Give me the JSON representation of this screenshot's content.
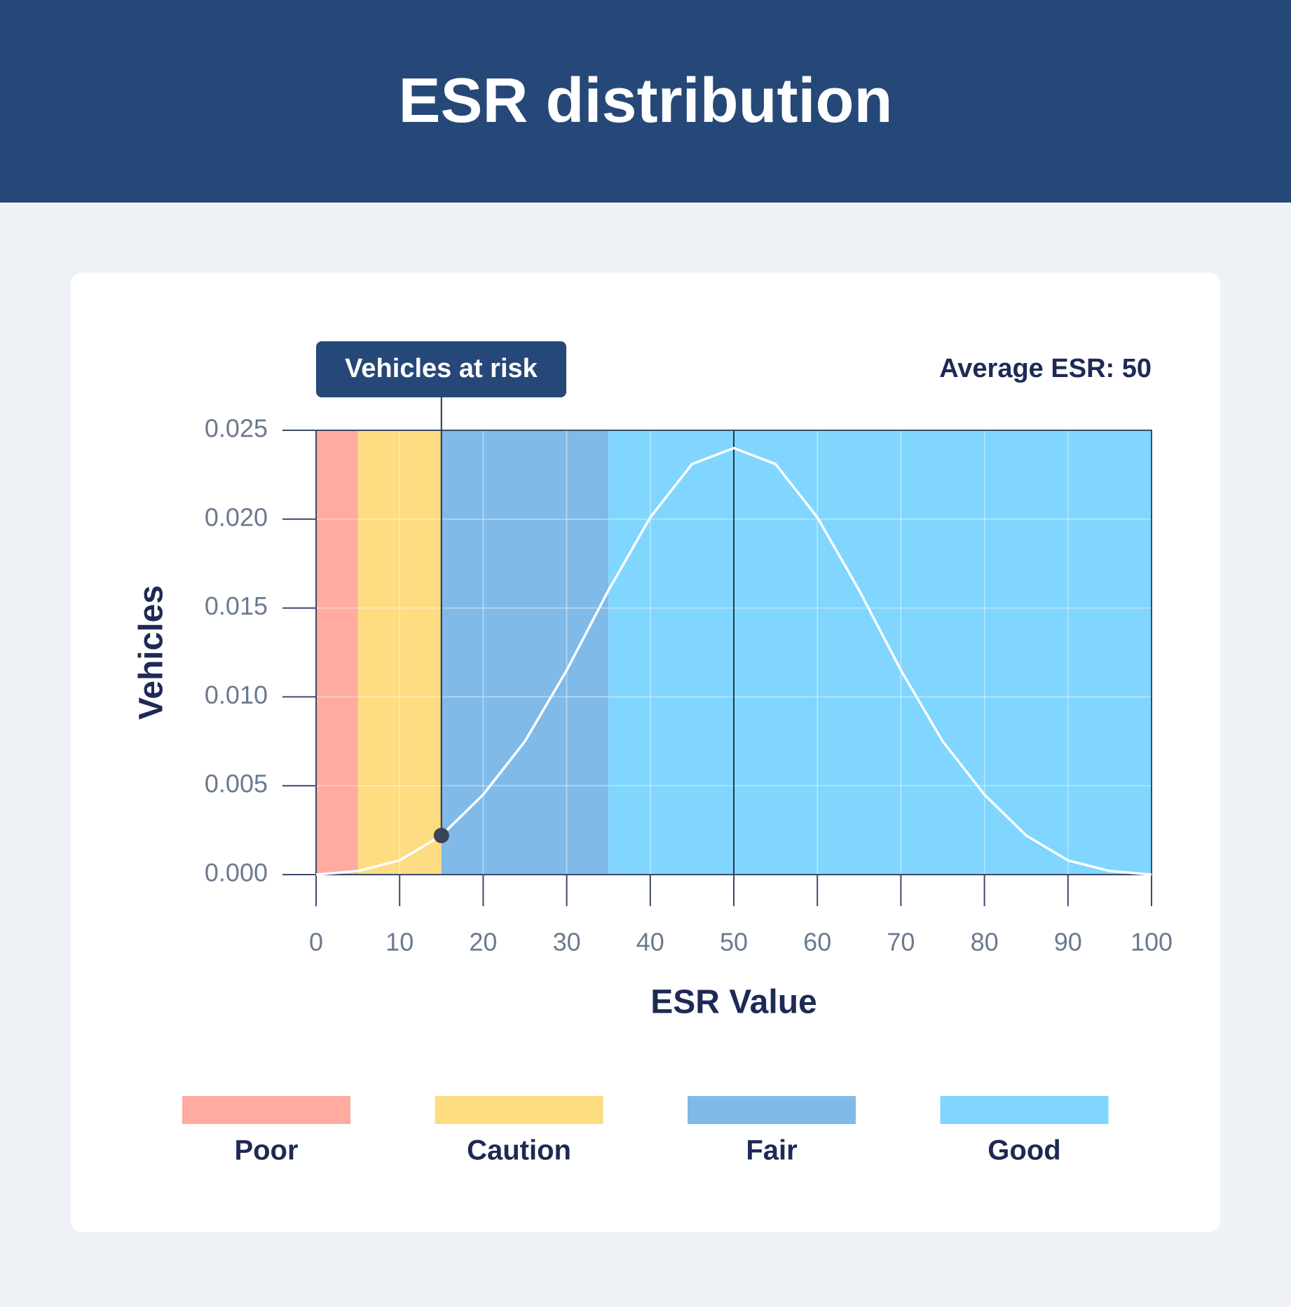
{
  "chart_data": {
    "type": "line",
    "title": "ESR distribution",
    "x_label": "ESR Value",
    "y_label": "Vehicles",
    "x": [
      0,
      5,
      10,
      15,
      20,
      25,
      30,
      35,
      40,
      45,
      50,
      55,
      60,
      65,
      70,
      75,
      80,
      85,
      90,
      95,
      100
    ],
    "series": [
      {
        "name": "ESR distribution",
        "color": "#ffffff",
        "values": [
          0,
          0.0002,
          0.0008,
          0.0022,
          0.0045,
          0.0075,
          0.0115,
          0.016,
          0.0201,
          0.0231,
          0.024,
          0.0231,
          0.0201,
          0.016,
          0.0115,
          0.0075,
          0.0045,
          0.0022,
          0.0008,
          0.0002,
          0
        ]
      }
    ],
    "xlim": [
      0,
      100
    ],
    "xticks": [
      0,
      10,
      20,
      30,
      40,
      50,
      60,
      70,
      80,
      90,
      100
    ],
    "ylim": [
      0,
      0.025
    ],
    "yticks": [
      {
        "value": 0,
        "label": "0.000"
      },
      {
        "value": 0.005,
        "label": "0.005"
      },
      {
        "value": 0.01,
        "label": "0.010"
      },
      {
        "value": 0.015,
        "label": "0.015"
      },
      {
        "value": 0.02,
        "label": "0.020"
      },
      {
        "value": 0.025,
        "label": "0.025"
      }
    ],
    "grid": true,
    "bands": [
      {
        "name": "Poor",
        "color": "#ffaba0",
        "from": 0,
        "to": 5
      },
      {
        "name": "Caution",
        "color": "#fddc82",
        "from": 5,
        "to": 15
      },
      {
        "name": "Fair",
        "color": "#80bae8",
        "from": 15,
        "to": 35
      },
      {
        "name": "Good",
        "color": "#80d6fe",
        "from": 35,
        "to": 100
      }
    ],
    "highlight_index": 3,
    "highlight_label": "Vehicles at risk",
    "reference_line": {
      "x": 50,
      "label": "Average ESR: 50"
    }
  }
}
